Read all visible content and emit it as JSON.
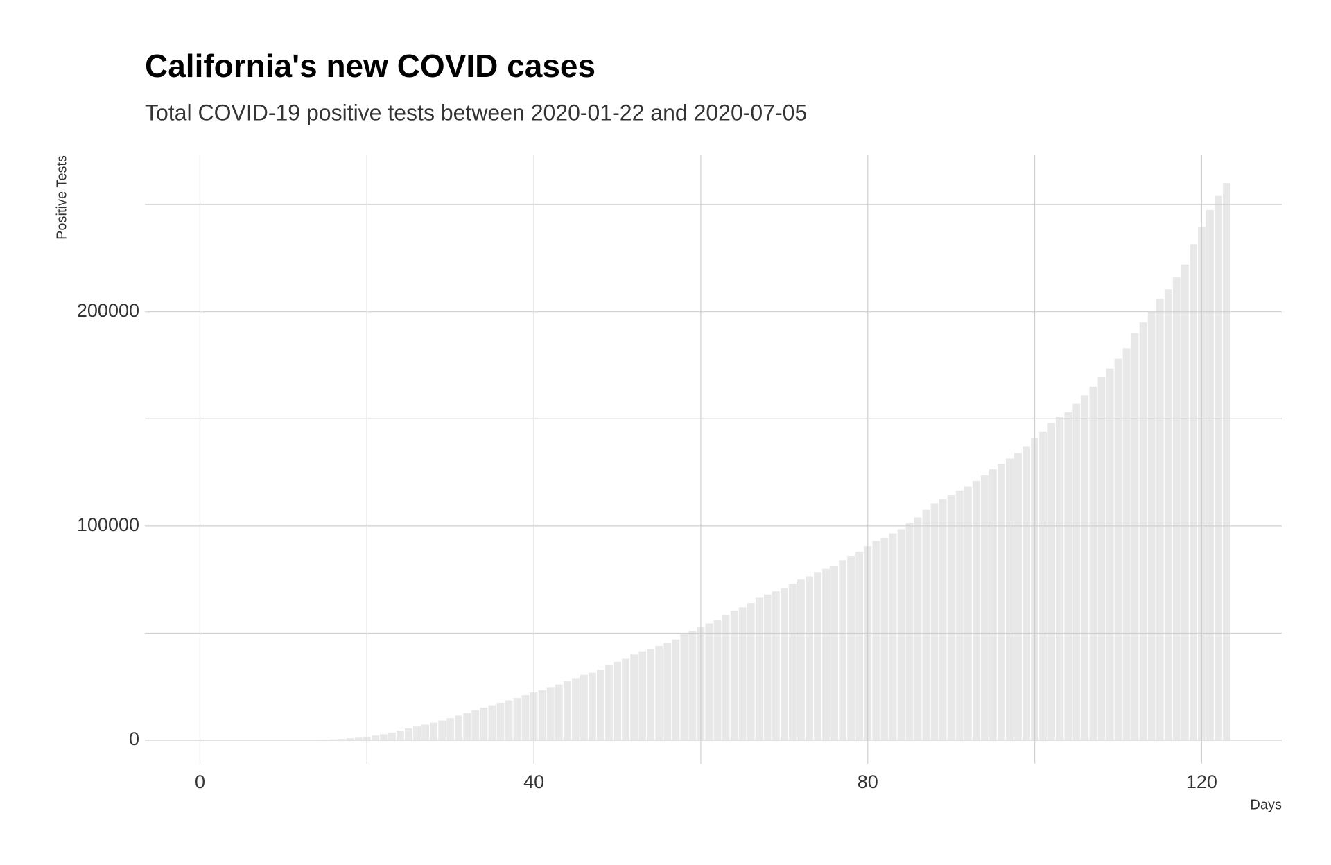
{
  "chart_data": {
    "type": "bar",
    "title": "California's new COVID cases",
    "subtitle": "Total COVID-19 positive tests between 2020-01-22 and 2020-07-05",
    "x_label": "Days",
    "y_label": "Positive Tests",
    "x": [
      0,
      1,
      2,
      3,
      4,
      5,
      6,
      7,
      8,
      9,
      10,
      11,
      12,
      13,
      14,
      15,
      16,
      17,
      18,
      19,
      20,
      21,
      22,
      23,
      24,
      25,
      26,
      27,
      28,
      29,
      30,
      31,
      32,
      33,
      34,
      35,
      36,
      37,
      38,
      39,
      40,
      41,
      42,
      43,
      44,
      45,
      46,
      47,
      48,
      49,
      50,
      51,
      52,
      53,
      54,
      55,
      56,
      57,
      58,
      59,
      60,
      61,
      62,
      63,
      64,
      65,
      66,
      67,
      68,
      69,
      70,
      71,
      72,
      73,
      74,
      75,
      76,
      77,
      78,
      79,
      80,
      81,
      82,
      83,
      84,
      85,
      86,
      87,
      88,
      89,
      90,
      91,
      92,
      93,
      94,
      95,
      96,
      97,
      98,
      99,
      100,
      101,
      102,
      103,
      104,
      105,
      106,
      107,
      108,
      109,
      110,
      111,
      112,
      113,
      114,
      115,
      116,
      117,
      118,
      119,
      120,
      121,
      122,
      123
    ],
    "values": [
      1,
      1,
      1,
      2,
      2,
      2,
      2,
      3,
      5,
      5,
      10,
      12,
      20,
      50,
      100,
      200,
      400,
      600,
      900,
      1200,
      1600,
      2200,
      2800,
      3600,
      4500,
      5500,
      6400,
      7300,
      8200,
      9200,
      10300,
      11500,
      12700,
      14000,
      15200,
      16300,
      17500,
      18600,
      19700,
      21000,
      22300,
      23300,
      24800,
      26000,
      27500,
      29000,
      30500,
      31500,
      33000,
      35000,
      36600,
      38000,
      40000,
      41500,
      42500,
      44000,
      45500,
      47000,
      49500,
      51000,
      53000,
      54500,
      56000,
      58500,
      60500,
      62000,
      64000,
      66500,
      68000,
      69500,
      71000,
      73000,
      75000,
      76500,
      78500,
      80000,
      81500,
      84000,
      86000,
      88000,
      90500,
      93000,
      94500,
      96500,
      98500,
      101500,
      104000,
      107500,
      110500,
      112500,
      114500,
      116500,
      118500,
      121000,
      123500,
      126500,
      129000,
      131500,
      134000,
      137000,
      141000,
      144000,
      148000,
      151000,
      153000,
      157000,
      161000,
      165000,
      169500,
      173500,
      178000,
      183000,
      190000,
      195000,
      200000,
      206000,
      210500,
      216000,
      222000,
      231500,
      239500,
      247500,
      254000,
      260000
    ],
    "color": "#e8e8e8",
    "xlim": [
      -6.6,
      129.6
    ],
    "xticks": [
      0,
      40,
      80,
      120
    ],
    "xminor": [
      20,
      60,
      100
    ],
    "ylim": [
      -11000,
      273000
    ],
    "yticks": [
      0,
      100000,
      200000
    ],
    "yminor": [
      50000,
      150000,
      250000
    ],
    "grid": true
  }
}
